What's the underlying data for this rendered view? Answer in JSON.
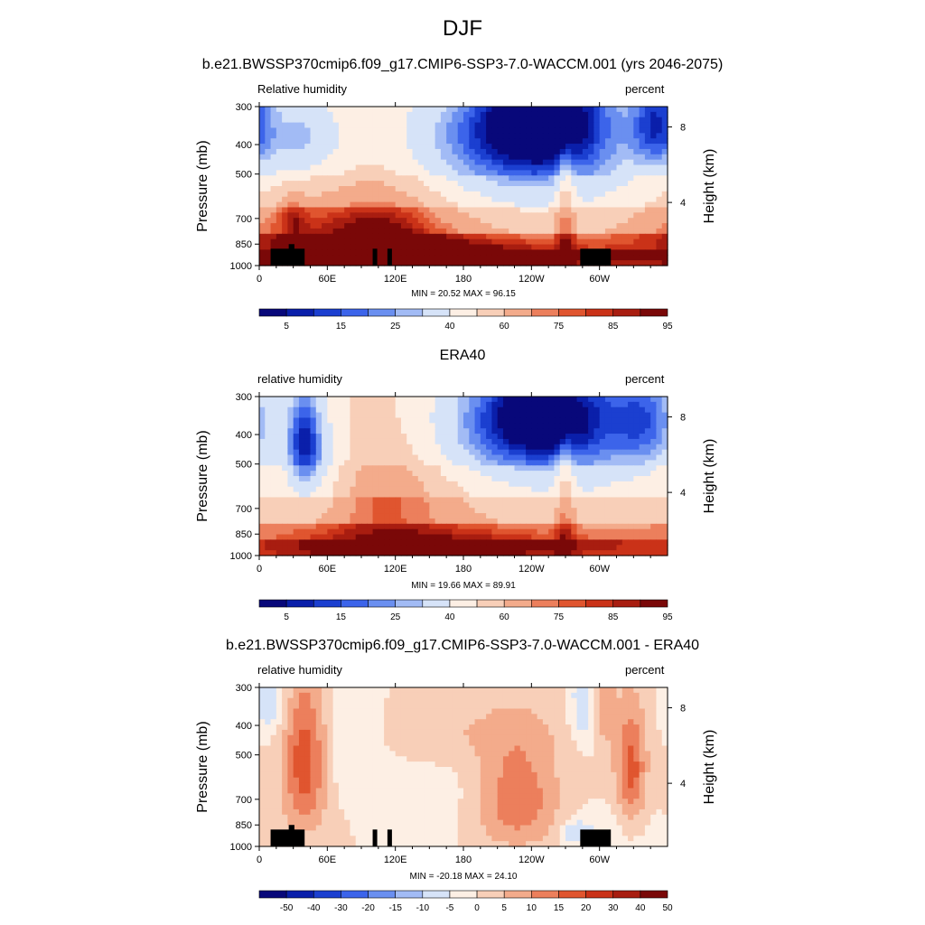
{
  "title": "DJF",
  "colors": {
    "rh_levels": [
      "#08087a",
      "#0a1faa",
      "#1b3fd0",
      "#3c64ea",
      "#6a8ff0",
      "#a2bbf5",
      "#d6e3f8",
      "#fdefe4",
      "#f8cfb8",
      "#f3ab8b",
      "#ec7f5c",
      "#e0552f",
      "#ca3218",
      "#a81d10",
      "#7a0808"
    ],
    "diff_levels": [
      "#08087a",
      "#0a1faa",
      "#1b3fd0",
      "#3c64ea",
      "#6a8ff0",
      "#a2bbf5",
      "#d6e3f8",
      "#fdefe4",
      "#f8cfb8",
      "#f3ab8b",
      "#ec7f5c",
      "#e0552f",
      "#ca3218",
      "#a81d10",
      "#7a0808"
    ],
    "land": "#000000"
  },
  "chart_data": [
    {
      "type": "heatmap",
      "title": "b.e21.BWSSP370cmip6.f09_g17.CMIP6-SSP3-7.0-WACCM.001 (yrs 2046-2075)",
      "left_label": "Relative humidity",
      "right_label": "percent",
      "ylabel": "Pressure (mb)",
      "y2label": "Height (km)",
      "x_ticks": [
        "0",
        "60E",
        "120E",
        "180",
        "120W",
        "60W"
      ],
      "y_ticks": [
        "300",
        "400",
        "500",
        "700",
        "850",
        "1000"
      ],
      "y2_ticks": [
        "8",
        "4"
      ],
      "xlim": [
        0,
        360
      ],
      "ylim": [
        1000,
        300
      ],
      "stats": "MIN = 20.52  MAX = 96.15",
      "colorbar_labels": [
        "5",
        "15",
        "25",
        "40",
        "60",
        "75",
        "85",
        "95"
      ],
      "colorbar_levels": [
        5,
        10,
        15,
        20,
        25,
        30,
        40,
        50,
        60,
        70,
        75,
        80,
        85,
        90,
        95
      ],
      "features": [
        {
          "lon": 60,
          "p": 820,
          "dx": 70,
          "dp": 140,
          "v": 22
        },
        {
          "lon": 110,
          "p": 800,
          "dx": 30,
          "dp": 180,
          "v": 15
        },
        {
          "lon": 185,
          "p": 340,
          "dx": 60,
          "dp": 90,
          "v": -10
        },
        {
          "lon": 250,
          "p": 330,
          "dx": 35,
          "dp": 80,
          "v": -45
        },
        {
          "lon": 225,
          "p": 440,
          "dx": 70,
          "dp": 140,
          "v": -25
        },
        {
          "lon": 190,
          "p": 920,
          "dx": 90,
          "dp": 70,
          "v": 25
        },
        {
          "lon": 270,
          "p": 700,
          "dx": 6,
          "dp": 260,
          "v": 20
        },
        {
          "lon": 30,
          "p": 690,
          "dx": 8,
          "dp": 80,
          "v": 15
        },
        {
          "lon": 350,
          "p": 340,
          "dx": 15,
          "dp": 80,
          "v": -30
        },
        {
          "lon": 40,
          "p": 380,
          "dx": 25,
          "dp": 90,
          "v": -20
        }
      ]
    },
    {
      "type": "heatmap",
      "title": "ERA40",
      "left_label": "relative humidity",
      "right_label": "percent",
      "ylabel": "Pressure (mb)",
      "y2label": "Height (km)",
      "x_ticks": [
        "0",
        "60E",
        "120E",
        "180",
        "120W",
        "60W"
      ],
      "y_ticks": [
        "300",
        "400",
        "500",
        "700",
        "850",
        "1000"
      ],
      "y2_ticks": [
        "8",
        "4"
      ],
      "xlim": [
        0,
        360
      ],
      "ylim": [
        1000,
        300
      ],
      "stats": "MIN = 19.66  MAX = 89.91",
      "colorbar_labels": [
        "5",
        "15",
        "25",
        "40",
        "60",
        "75",
        "85",
        "95"
      ],
      "colorbar_levels": [
        5,
        10,
        15,
        20,
        25,
        30,
        40,
        50,
        60,
        70,
        75,
        80,
        85,
        90,
        95
      ],
      "features": [
        {
          "lon": 40,
          "p": 420,
          "dx": 10,
          "dp": 110,
          "v": -30
        },
        {
          "lon": 50,
          "p": 500,
          "dx": 20,
          "dp": 180,
          "v": -15
        },
        {
          "lon": 115,
          "p": 600,
          "dx": 35,
          "dp": 220,
          "v": 12
        },
        {
          "lon": 230,
          "p": 380,
          "dx": 80,
          "dp": 150,
          "v": -25
        },
        {
          "lon": 250,
          "p": 350,
          "dx": 35,
          "dp": 80,
          "v": -35
        },
        {
          "lon": 340,
          "p": 360,
          "dx": 20,
          "dp": 90,
          "v": -20
        },
        {
          "lon": 185,
          "p": 920,
          "dx": 110,
          "dp": 70,
          "v": 18
        },
        {
          "lon": 270,
          "p": 700,
          "dx": 6,
          "dp": 260,
          "v": 18
        }
      ]
    },
    {
      "type": "heatmap",
      "title": "b.e21.BWSSP370cmip6.f09_g17.CMIP6-SSP3-7.0-WACCM.001 - ERA40",
      "left_label": "relative humidity",
      "right_label": "percent",
      "ylabel": "Pressure (mb)",
      "y2label": "Height (km)",
      "x_ticks": [
        "0",
        "60E",
        "120E",
        "180",
        "120W",
        "60W"
      ],
      "y_ticks": [
        "300",
        "400",
        "500",
        "700",
        "850",
        "1000"
      ],
      "y2_ticks": [
        "8",
        "4"
      ],
      "xlim": [
        0,
        360
      ],
      "ylim": [
        1000,
        300
      ],
      "stats": "MIN = -20.18  MAX = 24.10",
      "colorbar_labels": [
        "-50",
        "-40",
        "-30",
        "-20",
        "-15",
        "-10",
        "-5",
        "0",
        "5",
        "10",
        "15",
        "20",
        "30",
        "40",
        "50"
      ],
      "colorbar_levels": [
        -50,
        -40,
        -30,
        -20,
        -15,
        -10,
        -5,
        0,
        5,
        10,
        15,
        20,
        30,
        40,
        50
      ],
      "features": [
        {
          "lon": 40,
          "p": 520,
          "dx": 14,
          "dp": 200,
          "v": 20
        },
        {
          "lon": 228,
          "p": 660,
          "dx": 25,
          "dp": 200,
          "v": 14
        },
        {
          "lon": 328,
          "p": 580,
          "dx": 9,
          "dp": 170,
          "v": 16
        },
        {
          "lon": 290,
          "p": 340,
          "dx": 10,
          "dp": 90,
          "v": -15
        },
        {
          "lon": 10,
          "p": 330,
          "dx": 10,
          "dp": 60,
          "v": -10
        },
        {
          "lon": 300,
          "p": 340,
          "dx": 8,
          "dp": 70,
          "v": 15
        },
        {
          "lon": 90,
          "p": 500,
          "dx": 25,
          "dp": 200,
          "v": -4
        },
        {
          "lon": 150,
          "p": 600,
          "dx": 30,
          "dp": 200,
          "v": -3
        },
        {
          "lon": 280,
          "p": 900,
          "dx": 10,
          "dp": 60,
          "v": -10
        },
        {
          "lon": 180,
          "p": 420,
          "dx": 60,
          "dp": 80,
          "v": 5
        }
      ]
    }
  ]
}
